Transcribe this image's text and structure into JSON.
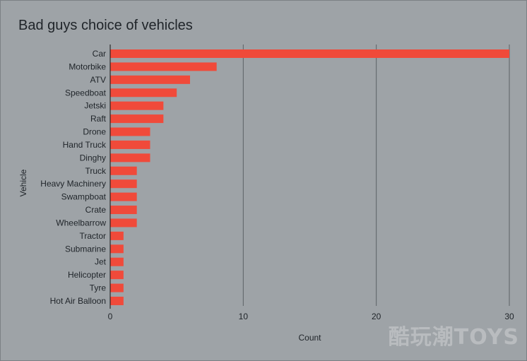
{
  "chart_data": {
    "type": "bar",
    "orientation": "horizontal",
    "title": "Bad guys choice of vehicles",
    "xlabel": "Count",
    "ylabel": "Vehicle",
    "categories": [
      "Car",
      "Motorbike",
      "ATV",
      "Speedboat",
      "Jetski",
      "Raft",
      "Drone",
      "Hand Truck",
      "Dinghy",
      "Truck",
      "Heavy Machinery",
      "Swampboat",
      "Crate",
      "Wheelbarrow",
      "Tractor",
      "Submarine",
      "Jet",
      "Helicopter",
      "Tyre",
      "Hot Air Balloon"
    ],
    "values": [
      30,
      8,
      6,
      5,
      4,
      4,
      3,
      3,
      3,
      2,
      2,
      2,
      2,
      2,
      1,
      1,
      1,
      1,
      1,
      1
    ],
    "xlim": [
      0,
      30
    ],
    "xticks": [
      0,
      10,
      20,
      30
    ],
    "grid": true,
    "bar_color": "#f04a3a",
    "background_color": "#9ea3a7",
    "grid_color": "#5c6166"
  },
  "watermark": {
    "text": "酷玩潮TOYS"
  }
}
